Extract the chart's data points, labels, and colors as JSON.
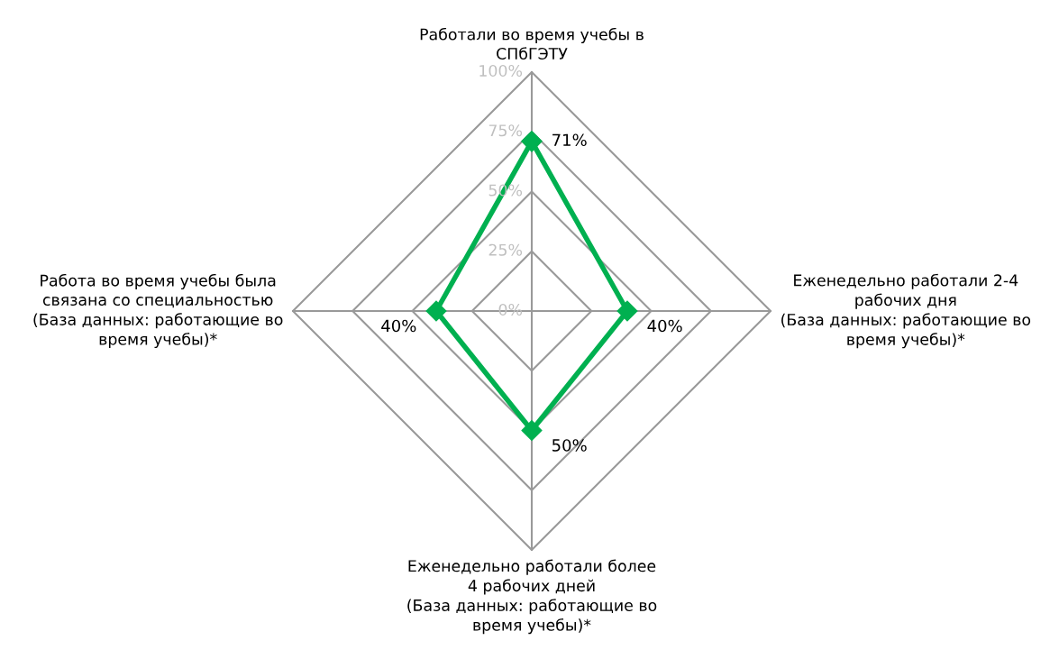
{
  "chart_data": {
    "type": "radar",
    "categories": [
      "Работали во время учебы в\nСПбГЭТУ",
      "Еженедельно работали 2-4\nрабочих дня\n(База данных: работающие во\nвремя учебы)*",
      "Еженедельно работали более\n4 рабочих дней\n(База данных: работающие во\nвремя учебы)*",
      "Работа во время учебы была\nсвязана со специальностью\n(База данных: работающие во\nвремя учебы)*"
    ],
    "series": [
      {
        "color": "#00b050",
        "values": [
          71,
          40,
          50,
          40
        ],
        "value_labels": [
          "71%",
          "40%",
          "50%",
          "40%"
        ]
      }
    ],
    "ylim": [
      0,
      100
    ],
    "yticks": [
      {
        "value": 0,
        "label": "0%"
      },
      {
        "value": 25,
        "label": "25%"
      },
      {
        "value": 50,
        "label": "50%"
      },
      {
        "value": 75,
        "label": "75%"
      },
      {
        "value": 100,
        "label": "100%"
      }
    ],
    "marker": "diamond",
    "grid": true
  }
}
